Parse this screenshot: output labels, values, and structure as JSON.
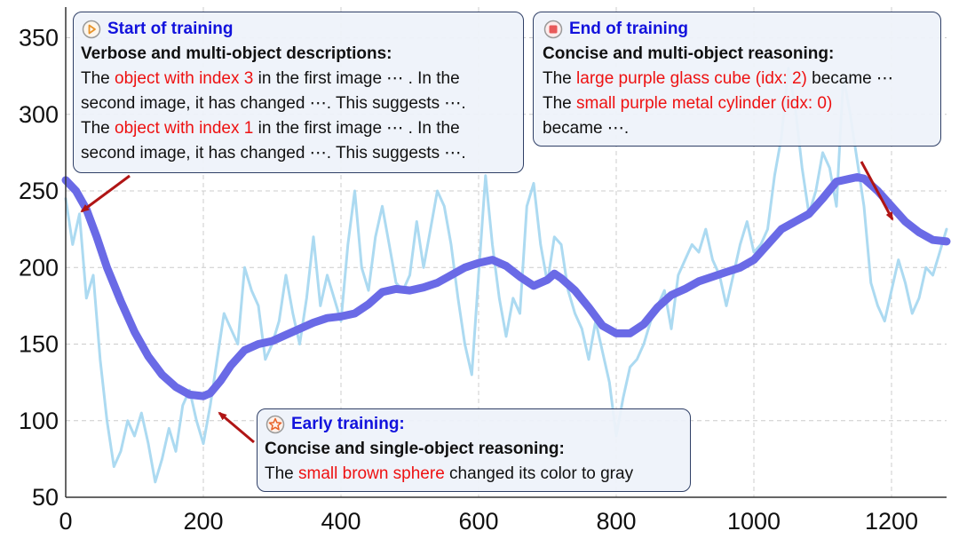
{
  "chart_data": {
    "type": "line",
    "xlim": [
      0,
      1280
    ],
    "ylim": [
      50,
      370
    ],
    "x_ticks": [
      0,
      200,
      400,
      600,
      800,
      1000,
      1200
    ],
    "y_ticks": [
      50,
      100,
      150,
      200,
      250,
      300,
      350
    ],
    "grid": true,
    "series": [
      {
        "kind": "raw",
        "color": "#a8d8f0",
        "x": [
          0,
          10,
          20,
          30,
          40,
          50,
          60,
          70,
          80,
          90,
          100,
          110,
          120,
          130,
          140,
          150,
          160,
          170,
          180,
          190,
          200,
          210,
          220,
          230,
          240,
          250,
          260,
          270,
          280,
          290,
          300,
          310,
          320,
          330,
          340,
          350,
          360,
          370,
          380,
          390,
          400,
          410,
          420,
          430,
          440,
          450,
          460,
          470,
          480,
          490,
          500,
          510,
          520,
          530,
          540,
          550,
          560,
          570,
          580,
          590,
          600,
          610,
          620,
          630,
          640,
          650,
          660,
          670,
          680,
          690,
          700,
          710,
          720,
          730,
          740,
          750,
          760,
          770,
          780,
          790,
          800,
          810,
          820,
          830,
          840,
          850,
          860,
          870,
          880,
          890,
          900,
          910,
          920,
          930,
          940,
          950,
          960,
          970,
          980,
          990,
          1000,
          1010,
          1020,
          1030,
          1040,
          1050,
          1060,
          1070,
          1080,
          1090,
          1100,
          1110,
          1120,
          1130,
          1140,
          1150,
          1160,
          1170,
          1180,
          1190,
          1200,
          1210,
          1220,
          1230,
          1240,
          1250,
          1260,
          1270,
          1280
        ],
        "y": [
          245,
          215,
          235,
          180,
          195,
          140,
          100,
          70,
          80,
          100,
          90,
          105,
          85,
          60,
          75,
          95,
          80,
          110,
          120,
          100,
          85,
          110,
          140,
          170,
          160,
          150,
          200,
          185,
          175,
          140,
          150,
          165,
          195,
          170,
          150,
          180,
          220,
          175,
          195,
          180,
          165,
          215,
          250,
          200,
          185,
          220,
          240,
          215,
          190,
          185,
          195,
          230,
          200,
          225,
          250,
          240,
          215,
          180,
          150,
          130,
          195,
          260,
          215,
          180,
          155,
          180,
          170,
          240,
          255,
          215,
          190,
          220,
          215,
          185,
          170,
          160,
          140,
          165,
          145,
          125,
          90,
          115,
          135,
          140,
          150,
          165,
          175,
          185,
          160,
          195,
          205,
          215,
          210,
          225,
          205,
          195,
          175,
          195,
          215,
          230,
          210,
          215,
          225,
          260,
          285,
          330,
          305,
          265,
          235,
          250,
          275,
          265,
          240,
          325,
          300,
          270,
          240,
          190,
          175,
          165,
          185,
          205,
          190,
          170,
          180,
          200,
          195,
          210,
          225
        ]
      },
      {
        "kind": "smoothed",
        "color": "#6a6ae6",
        "x": [
          0,
          15,
          30,
          45,
          60,
          80,
          100,
          120,
          140,
          160,
          180,
          200,
          210,
          225,
          240,
          260,
          280,
          300,
          320,
          340,
          360,
          380,
          400,
          420,
          440,
          460,
          480,
          500,
          520,
          540,
          560,
          580,
          600,
          620,
          640,
          660,
          680,
          700,
          710,
          720,
          740,
          760,
          780,
          800,
          820,
          840,
          860,
          880,
          900,
          920,
          940,
          960,
          980,
          1000,
          1020,
          1040,
          1060,
          1080,
          1100,
          1120,
          1140,
          1150,
          1160,
          1180,
          1200,
          1220,
          1240,
          1260,
          1280
        ],
        "y": [
          257,
          250,
          238,
          220,
          200,
          178,
          158,
          142,
          130,
          122,
          117,
          116,
          118,
          126,
          136,
          146,
          150,
          152,
          156,
          160,
          164,
          167,
          168,
          170,
          176,
          184,
          186,
          185,
          187,
          190,
          195,
          200,
          203,
          205,
          201,
          194,
          188,
          192,
          196,
          193,
          185,
          174,
          162,
          157,
          157,
          163,
          174,
          182,
          186,
          191,
          194,
          197,
          200,
          205,
          215,
          225,
          230,
          235,
          245,
          256,
          258,
          259,
          258,
          250,
          240,
          230,
          223,
          218,
          217
        ]
      }
    ]
  },
  "annotations": {
    "start": {
      "title": "Start of training",
      "subtitle": "Verbose and multi-object descriptions:",
      "lines": [
        {
          "pre": "The ",
          "red": "object with index 3",
          "post": " in the first image ⋯ . In the"
        },
        {
          "pre": "second image, it has changed ⋯. This suggests ⋯.",
          "red": "",
          "post": ""
        },
        {
          "pre": "The ",
          "red": "object with index 1",
          "post": " in the first image ⋯ . In the"
        },
        {
          "pre": "second image, it has changed ⋯. This suggests ⋯.",
          "red": "",
          "post": ""
        }
      ]
    },
    "end": {
      "title": "End of training",
      "subtitle": "Concise and multi-object reasoning:",
      "lines": [
        {
          "pre": "The ",
          "red": "large purple glass cube (idx: 2)",
          "post": " became ⋯"
        },
        {
          "pre": "The ",
          "red": "small purple metal cylinder (idx: 0)",
          "post": ""
        },
        {
          "pre": "became ⋯.",
          "red": "",
          "post": ""
        }
      ]
    },
    "early": {
      "title": "Early training:",
      "subtitle": "Concise and single-object reasoning:",
      "lines": [
        {
          "pre": "The ",
          "red": "small brown sphere",
          "post": " changed its color to gray"
        }
      ]
    }
  },
  "colors": {
    "raw_line": "#a8d8f0",
    "smoothed_line": "#6a6ae6",
    "arrow": "#b01515",
    "title_text": "#1212dd",
    "highlight_text": "#ee1111"
  }
}
